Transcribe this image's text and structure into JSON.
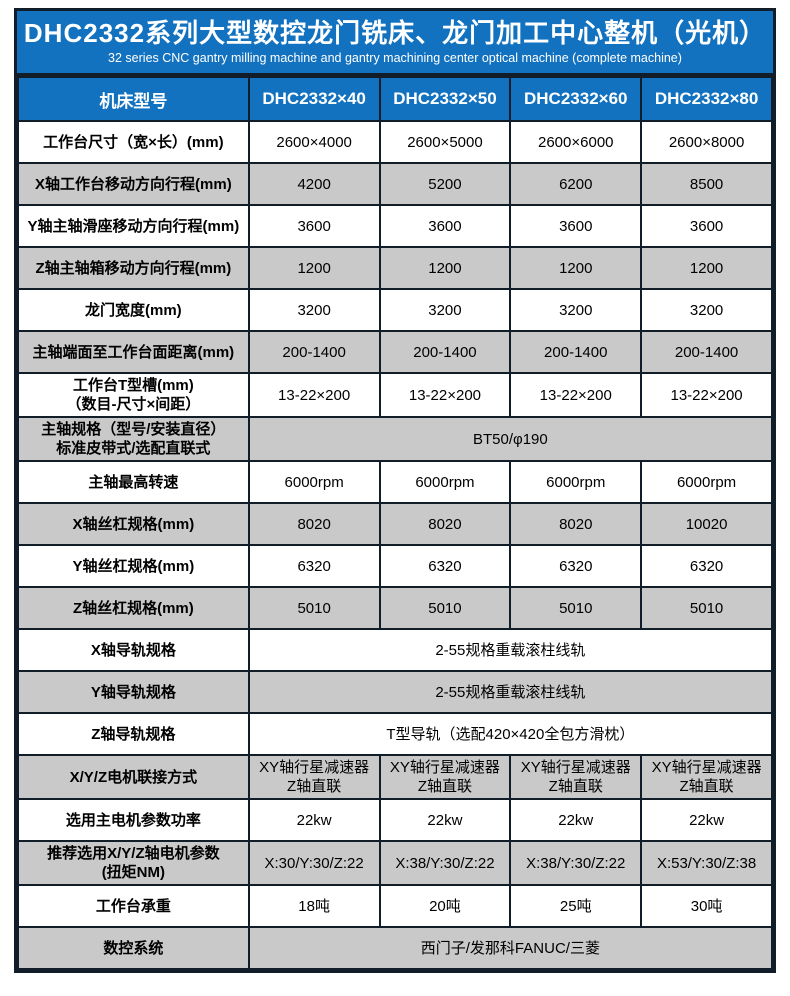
{
  "banner": {
    "title": "DHC2332系列大型数控龙门铣床、龙门加工中心整机（光机）",
    "subtitle": "32 series CNC gantry milling machine and gantry machining center optical machine (complete machine)"
  },
  "colors": {
    "accent_blue": "#1272c0",
    "border_dark": "#111d28",
    "row_shade_gray": "#c9c9c9"
  },
  "table": {
    "columns": [
      "机床型号",
      "DHC2332×40",
      "DHC2332×50",
      "DHC2332×60",
      "DHC2332×80"
    ],
    "rows": [
      {
        "shaded": false,
        "label": "工作台尺寸（宽×长）(mm)",
        "cells": [
          "2600×4000",
          "2600×5000",
          "2600×6000",
          "2600×8000"
        ]
      },
      {
        "shaded": true,
        "label": "X轴工作台移动方向行程(mm)",
        "cells": [
          "4200",
          "5200",
          "6200",
          "8500"
        ]
      },
      {
        "shaded": false,
        "label": "Y轴主轴滑座移动方向行程(mm)",
        "cells": [
          "3600",
          "3600",
          "3600",
          "3600"
        ]
      },
      {
        "shaded": true,
        "label": "Z轴主轴箱移动方向行程(mm)",
        "cells": [
          "1200",
          "1200",
          "1200",
          "1200"
        ]
      },
      {
        "shaded": false,
        "label": "龙门宽度(mm)",
        "cells": [
          "3200",
          "3200",
          "3200",
          "3200"
        ]
      },
      {
        "shaded": true,
        "label": "主轴端面至工作台面距离(mm)",
        "cells": [
          "200-1400",
          "200-1400",
          "200-1400",
          "200-1400"
        ]
      },
      {
        "shaded": false,
        "label": "工作台T型槽(mm)\n（数目-尺寸×间距）",
        "cells": [
          "13-22×200",
          "13-22×200",
          "13-22×200",
          "13-22×200"
        ]
      },
      {
        "shaded": true,
        "label": "主轴规格（型号/安装直径）\n标准皮带式/选配直联式",
        "merged": "BT50/φ190"
      },
      {
        "shaded": false,
        "label": "主轴最高转速",
        "cells": [
          "6000rpm",
          "6000rpm",
          "6000rpm",
          "6000rpm"
        ]
      },
      {
        "shaded": true,
        "label": "X轴丝杠规格(mm)",
        "cells": [
          "8020",
          "8020",
          "8020",
          "10020"
        ]
      },
      {
        "shaded": false,
        "label": "Y轴丝杠规格(mm)",
        "cells": [
          "6320",
          "6320",
          "6320",
          "6320"
        ]
      },
      {
        "shaded": true,
        "label": "Z轴丝杠规格(mm)",
        "cells": [
          "5010",
          "5010",
          "5010",
          "5010"
        ]
      },
      {
        "shaded": false,
        "label": "X轴导轨规格",
        "merged": "2-55规格重载滚柱线轨"
      },
      {
        "shaded": true,
        "label": "Y轴导轨规格",
        "merged": "2-55规格重载滚柱线轨"
      },
      {
        "shaded": false,
        "label": "Z轴导轨规格",
        "merged": "T型导轨（选配420×420全包方滑枕）"
      },
      {
        "shaded": true,
        "label": "X/Y/Z电机联接方式",
        "cells": [
          "XY轴行星减速器\nZ轴直联",
          "XY轴行星减速器\nZ轴直联",
          "XY轴行星减速器\nZ轴直联",
          "XY轴行星减速器\nZ轴直联"
        ]
      },
      {
        "shaded": false,
        "label": "选用主电机参数功率",
        "cells": [
          "22kw",
          "22kw",
          "22kw",
          "22kw"
        ]
      },
      {
        "shaded": true,
        "label": "推荐选用X/Y/Z轴电机参数\n(扭矩NM)",
        "cells": [
          "X:30/Y:30/Z:22",
          "X:38/Y:30/Z:22",
          "X:38/Y:30/Z:22",
          "X:53/Y:30/Z:38"
        ]
      },
      {
        "shaded": false,
        "label": "工作台承重",
        "cells": [
          "18吨",
          "20吨",
          "25吨",
          "30吨"
        ]
      },
      {
        "shaded": true,
        "label": "数控系统",
        "merged": "西门子/发那科FANUC/三菱"
      }
    ]
  }
}
